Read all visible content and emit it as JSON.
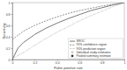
{
  "chart_data": {
    "type": "line",
    "x_label": "False positive rate",
    "y_label": "Sensitivity",
    "xlim": [
      0,
      1
    ],
    "ylim": [
      0,
      1
    ],
    "xticks": [
      0,
      0.2,
      0.4,
      0.6,
      0.8,
      1
    ],
    "yticks": [
      0,
      0.2,
      0.4,
      0.6,
      0.8,
      1
    ],
    "legend": "lower right",
    "series": [
      {
        "name": "SROC",
        "type": "line",
        "line_style": "solid",
        "color": "#555555",
        "x": [
          0,
          0.05,
          0.1,
          0.2,
          0.3,
          0.4,
          0.5,
          0.6,
          0.7,
          0.8,
          0.9,
          1
        ],
        "values": [
          0,
          0.2,
          0.3,
          0.44,
          0.55,
          0.64,
          0.72,
          0.79,
          0.86,
          0.91,
          0.96,
          1
        ]
      },
      {
        "name": "95% confidence region",
        "type": "line",
        "line_style": "dashed",
        "color": "#777777",
        "x": [
          0,
          0.1,
          0.2,
          0.3,
          0.4,
          0.5,
          0.6,
          0.7,
          0.8,
          0.9,
          1
        ],
        "values": [
          0.35,
          0.5,
          0.6,
          0.68,
          0.75,
          0.81,
          0.86,
          0.9,
          0.94,
          0.97,
          1
        ]
      },
      {
        "name": "95% prediction region",
        "type": "line",
        "line_style": "dotted",
        "color": "#999999",
        "x": [
          0,
          0.1,
          0.2,
          0.3,
          0.4,
          0.5,
          0.6,
          0.7,
          0.8,
          0.9,
          1
        ],
        "values": [
          0.02,
          0.12,
          0.25,
          0.37,
          0.48,
          0.58,
          0.68,
          0.77,
          0.85,
          0.93,
          1
        ]
      },
      {
        "name": "Individual study estimates",
        "type": "scatter",
        "marker": "circle",
        "color": "#888888",
        "x": [],
        "values": []
      },
      {
        "name": "Pooled summary estimate",
        "type": "scatter",
        "marker": "square",
        "color": "#333333",
        "x": [],
        "values": []
      }
    ]
  }
}
